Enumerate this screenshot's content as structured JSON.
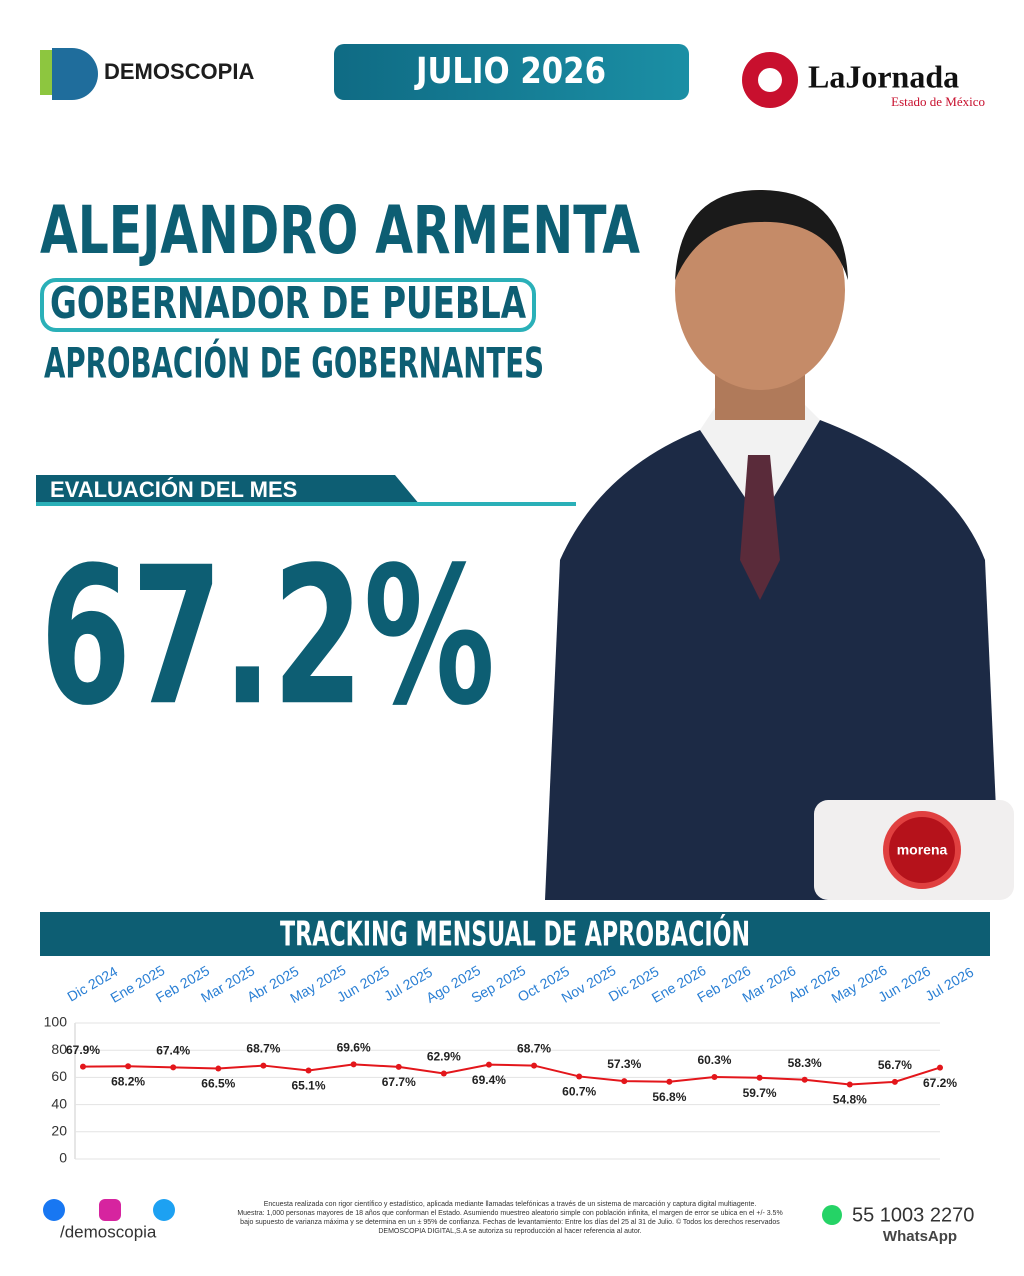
{
  "header": {
    "brand": "DEMOSCOPIA",
    "date": "JULIO 2026",
    "partner": "LaJornada",
    "partner_sub": "Estado de México"
  },
  "headline": {
    "name": "ALEJANDRO ARMENTA",
    "role": "GOBERNADOR DE PUEBLA",
    "topic": "APROBACIÓN DE GOBERNANTES"
  },
  "evaluation": {
    "label": "EVALUACIÓN DEL MES",
    "value": "67.2%"
  },
  "party": "morena",
  "chart_data": {
    "type": "line",
    "title": "TRACKING MENSUAL DE APROBACIÓN",
    "categories": [
      "Dic 2024",
      "Ene 2025",
      "Feb 2025",
      "Mar 2025",
      "Abr 2025",
      "May 2025",
      "Jun 2025",
      "Jul 2025",
      "Ago 2025",
      "Sep 2025",
      "Oct 2025",
      "Nov 2025",
      "Dic 2025",
      "Ene 2026",
      "Feb 2026",
      "Mar 2026",
      "Abr 2026",
      "May 2026",
      "Jun 2026",
      "Jul 2026"
    ],
    "series": [
      {
        "name": "Aprobación",
        "color": "#e3161b",
        "values": [
          67.9,
          68.2,
          67.4,
          66.5,
          68.7,
          65.1,
          69.6,
          67.7,
          62.9,
          69.4,
          68.7,
          60.7,
          57.3,
          56.8,
          60.3,
          59.7,
          58.3,
          54.8,
          56.7,
          67.2
        ],
        "value_labels": [
          "67.9%",
          "68.2%",
          "67.4%",
          "66.5%",
          "68.7%",
          "65.1%",
          "69.6%",
          "67.7%",
          "62.9%",
          "69.4%",
          "68.7%",
          "60.7%",
          "57.3%",
          "56.8%",
          "60.3%",
          "59.7%",
          "58.3%",
          "54.8%",
          "56.7%",
          "67.2%"
        ]
      }
    ],
    "ylim": [
      0,
      100
    ],
    "yticks": [
      0,
      20,
      40,
      60,
      80,
      100
    ],
    "grid": true
  },
  "footer": {
    "handle": "/demoscopia",
    "disclaimer": [
      "Encuesta realizada con rigor científico y estadístico, aplicada mediante llamadas telefónicas a través de un sistema de marcación y captura digital multiagente.",
      "Muestra: 1,000 personas mayores de 18 años que conforman el Estado. Asumiendo muestreo aleatorio simple con población infinita, el margen de error se ubica en el +/- 3.5%",
      "bajo supuesto de varianza máxima y se determina en un ± 95% de confianza. Fechas de levantamiento: Entre los días del 25 al 31 de Julio. © Todos los derechos reservados",
      "DEMOSCOPIA DIGITAL,S.A se autoriza su reproducción al hacer referencia al autor."
    ],
    "phone": "55 1003 2270",
    "phone_label": "WhatsApp"
  }
}
